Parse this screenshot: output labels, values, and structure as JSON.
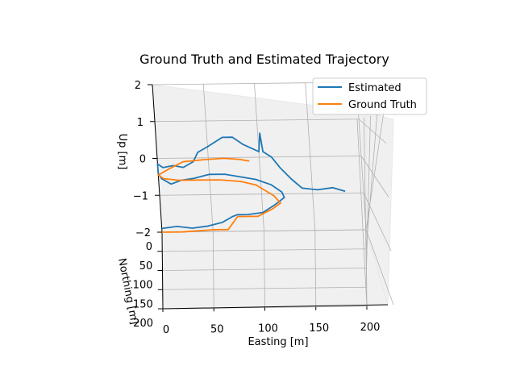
{
  "chart_data": {
    "type": "line",
    "projection": "3d",
    "title": "Ground Truth and Estimated Trajectory",
    "xlabel": "Easting [m]",
    "ylabel": "Northing [m]",
    "zlabel": "Up [m]",
    "xlim": [
      0,
      200
    ],
    "ylim": [
      0,
      200
    ],
    "zlim": [
      -2,
      2
    ],
    "xticks": [
      "0",
      "50",
      "100",
      "150",
      "200"
    ],
    "yticks": [
      "0",
      "50",
      "100",
      "150",
      "200"
    ],
    "zticks": [
      "−2",
      "−1",
      "0",
      "1",
      "2"
    ],
    "grid": true,
    "legend": "top-right",
    "series": [
      {
        "name": "Estimated",
        "color": "#1f77b4",
        "points": [
          [
            0,
            0,
            -1.9
          ],
          [
            15,
            0,
            -1.85
          ],
          [
            30,
            0,
            -1.9
          ],
          [
            45,
            0,
            -1.85
          ],
          [
            60,
            0,
            -1.75
          ],
          [
            70,
            0,
            -1.6
          ],
          [
            75,
            0,
            -1.55
          ],
          [
            85,
            0,
            -1.55
          ],
          [
            100,
            0,
            -1.5
          ],
          [
            112,
            0,
            -1.3
          ],
          [
            122,
            0,
            -1.1
          ],
          [
            122,
            0,
            -1.1
          ],
          [
            120,
            0,
            -0.95
          ],
          [
            110,
            0,
            -0.75
          ],
          [
            95,
            0,
            -0.6
          ],
          [
            85,
            0,
            -0.55
          ],
          [
            65,
            0,
            -0.45
          ],
          [
            50,
            0,
            -0.45
          ],
          [
            35,
            0,
            -0.55
          ],
          [
            22,
            0,
            -0.6
          ],
          [
            12,
            0,
            -0.7
          ],
          [
            3,
            0,
            -0.55
          ],
          [
            0,
            0,
            -0.4
          ],
          [
            0,
            0,
            -0.15
          ],
          [
            5,
            0,
            -0.25
          ],
          [
            15,
            0,
            -0.2
          ],
          [
            25,
            0,
            -0.25
          ],
          [
            35,
            0,
            -0.1
          ],
          [
            40,
            0,
            0.15
          ],
          [
            50,
            0,
            0.3
          ],
          [
            65,
            0,
            0.55
          ],
          [
            75,
            0,
            0.55
          ],
          [
            85,
            0,
            0.35
          ],
          [
            100,
            0,
            0.15
          ],
          [
            102,
            0,
            0.65
          ],
          [
            104,
            0,
            0.15
          ],
          [
            112,
            0,
            0.0
          ],
          [
            120,
            0,
            -0.3
          ],
          [
            130,
            0,
            -0.6
          ],
          [
            140,
            0,
            -0.85
          ],
          [
            155,
            0,
            -0.9
          ],
          [
            170,
            0,
            -0.85
          ],
          [
            182,
            0,
            -0.95
          ]
        ]
      },
      {
        "name": "Ground Truth",
        "color": "#ff7f0e",
        "points": [
          [
            0,
            0,
            -2.0
          ],
          [
            20,
            0,
            -2.0
          ],
          [
            50,
            0,
            -1.95
          ],
          [
            65,
            0,
            -1.95
          ],
          [
            75,
            0,
            -1.6
          ],
          [
            95,
            0,
            -1.6
          ],
          [
            110,
            0,
            -1.4
          ],
          [
            118,
            0,
            -1.25
          ],
          [
            112,
            0,
            -1.05
          ],
          [
            95,
            0,
            -0.75
          ],
          [
            80,
            0,
            -0.65
          ],
          [
            60,
            0,
            -0.6
          ],
          [
            40,
            0,
            -0.6
          ],
          [
            20,
            0,
            -0.6
          ],
          [
            5,
            0,
            -0.55
          ],
          [
            0,
            0,
            -0.45
          ],
          [
            10,
            0,
            -0.3
          ],
          [
            25,
            0,
            -0.1
          ],
          [
            45,
            0,
            -0.05
          ],
          [
            65,
            0,
            -0.02
          ],
          [
            80,
            0,
            -0.05
          ],
          [
            90,
            0,
            -0.1
          ]
        ]
      }
    ]
  }
}
